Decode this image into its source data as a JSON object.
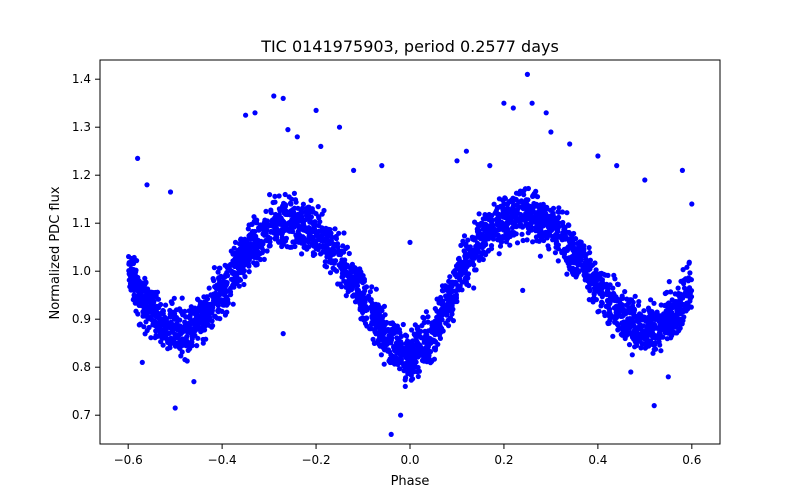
{
  "chart_data": {
    "type": "scatter",
    "title": "TIC 0141975903, period 0.2577 days",
    "xlabel": "Phase",
    "ylabel": "Normalized PDC flux",
    "xlim": [
      -0.66,
      0.66
    ],
    "ylim": [
      0.64,
      1.44
    ],
    "x_ticks": [
      -0.6,
      -0.4,
      -0.2,
      0.0,
      0.2,
      0.4,
      0.6
    ],
    "x_tick_labels": [
      "−0.6",
      "−0.4",
      "−0.2",
      "0.0",
      "0.2",
      "0.4",
      "0.6"
    ],
    "y_ticks": [
      0.7,
      0.8,
      0.9,
      1.0,
      1.1,
      1.2,
      1.3,
      1.4
    ],
    "y_tick_labels": [
      "0.7",
      "0.8",
      "0.9",
      "1.0",
      "1.1",
      "1.2",
      "1.3",
      "1.4"
    ],
    "grid": false,
    "marker_color": "#0000ff",
    "phase_curve": {
      "x": [
        -0.6,
        -0.56,
        -0.52,
        -0.48,
        -0.44,
        -0.4,
        -0.36,
        -0.32,
        -0.28,
        -0.24,
        -0.2,
        -0.16,
        -0.12,
        -0.08,
        -0.04,
        0.0,
        0.04,
        0.08,
        0.12,
        0.16,
        0.2,
        0.24,
        0.28,
        0.32,
        0.36,
        0.4,
        0.44,
        0.48,
        0.52,
        0.56,
        0.6
      ],
      "y": [
        1.0,
        0.93,
        0.885,
        0.875,
        0.905,
        0.96,
        1.02,
        1.07,
        1.1,
        1.1,
        1.08,
        1.04,
        0.98,
        0.91,
        0.85,
        0.82,
        0.85,
        0.93,
        1.02,
        1.08,
        1.11,
        1.12,
        1.11,
        1.08,
        1.03,
        0.97,
        0.92,
        0.885,
        0.88,
        0.91,
        0.96
      ]
    },
    "scatter_halfwidth": 0.045,
    "outliers": {
      "x": [
        -0.58,
        -0.56,
        -0.51,
        -0.5,
        -0.44,
        -0.35,
        -0.33,
        -0.29,
        -0.27,
        -0.26,
        -0.24,
        -0.2,
        -0.19,
        -0.15,
        -0.12,
        -0.06,
        -0.04,
        -0.02,
        0.0,
        0.1,
        0.12,
        0.17,
        0.2,
        0.22,
        0.25,
        0.26,
        0.29,
        0.3,
        0.34,
        0.4,
        0.44,
        0.5,
        0.52,
        0.58,
        0.6,
        -0.57,
        -0.46,
        -0.27,
        -0.01,
        0.24,
        0.47,
        0.55
      ],
      "y": [
        1.235,
        1.18,
        1.165,
        0.715,
        0.85,
        1.325,
        1.33,
        1.365,
        1.36,
        1.295,
        1.28,
        1.335,
        1.26,
        1.3,
        1.21,
        1.22,
        0.66,
        0.7,
        1.06,
        1.23,
        1.25,
        1.22,
        1.35,
        1.34,
        1.41,
        1.35,
        1.33,
        1.29,
        1.265,
        1.24,
        1.22,
        1.19,
        0.72,
        1.21,
        1.14,
        0.81,
        0.77,
        0.87,
        0.76,
        0.96,
        0.79,
        0.78
      ]
    }
  }
}
